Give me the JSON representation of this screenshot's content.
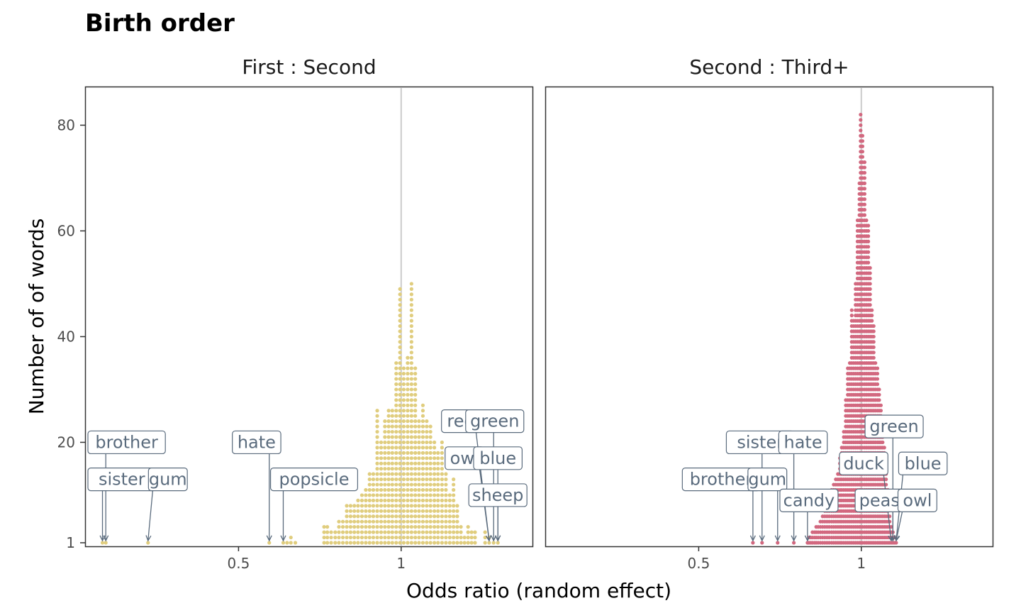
{
  "chart_data": {
    "type": "dotplot",
    "title": "Birth order",
    "xlabel": "Odds ratio (random effect)",
    "ylabel": "Number of of words",
    "x_scale": "log",
    "x_ticks": [
      0.5,
      1
    ],
    "y_ticks": [
      1,
      20,
      40,
      60,
      80
    ],
    "ylim": [
      1,
      86
    ],
    "reference_line": 1,
    "panels": [
      {
        "name": "First : Second",
        "color": "#e0cd7e",
        "xlim": [
          0.26,
          1.75
        ],
        "bins": [
          {
            "x": 0.28,
            "count": 1
          },
          {
            "x": 0.284,
            "count": 1
          },
          {
            "x": 0.34,
            "count": 1
          },
          {
            "x": 0.57,
            "count": 1
          },
          {
            "x": 0.605,
            "count": 1
          },
          {
            "x": 0.615,
            "count": 1
          },
          {
            "x": 0.625,
            "count": 2
          },
          {
            "x": 0.637,
            "count": 1
          },
          {
            "x": 0.72,
            "count": 4
          },
          {
            "x": 0.73,
            "count": 4
          },
          {
            "x": 0.742,
            "count": 3
          },
          {
            "x": 0.755,
            "count": 3
          },
          {
            "x": 0.767,
            "count": 5
          },
          {
            "x": 0.78,
            "count": 5
          },
          {
            "x": 0.793,
            "count": 8
          },
          {
            "x": 0.806,
            "count": 8
          },
          {
            "x": 0.819,
            "count": 8
          },
          {
            "x": 0.832,
            "count": 9
          },
          {
            "x": 0.846,
            "count": 10
          },
          {
            "x": 0.86,
            "count": 11
          },
          {
            "x": 0.874,
            "count": 14
          },
          {
            "x": 0.888,
            "count": 14
          },
          {
            "x": 0.903,
            "count": 26
          },
          {
            "x": 0.918,
            "count": 20
          },
          {
            "x": 0.933,
            "count": 24
          },
          {
            "x": 0.948,
            "count": 26
          },
          {
            "x": 0.963,
            "count": 26
          },
          {
            "x": 0.979,
            "count": 35
          },
          {
            "x": 0.995,
            "count": 49
          },
          {
            "x": 1.011,
            "count": 34
          },
          {
            "x": 1.028,
            "count": 36
          },
          {
            "x": 1.045,
            "count": 50
          },
          {
            "x": 1.062,
            "count": 34
          },
          {
            "x": 1.079,
            "count": 24
          },
          {
            "x": 1.097,
            "count": 27
          },
          {
            "x": 1.115,
            "count": 24
          },
          {
            "x": 1.133,
            "count": 23
          },
          {
            "x": 1.152,
            "count": 20
          },
          {
            "x": 1.17,
            "count": 18
          },
          {
            "x": 1.19,
            "count": 20
          },
          {
            "x": 1.21,
            "count": 14
          },
          {
            "x": 1.23,
            "count": 10
          },
          {
            "x": 1.25,
            "count": 13
          },
          {
            "x": 1.27,
            "count": 8
          },
          {
            "x": 1.29,
            "count": 4
          },
          {
            "x": 1.31,
            "count": 2
          },
          {
            "x": 1.33,
            "count": 4
          },
          {
            "x": 1.35,
            "count": 3
          },
          {
            "x": 1.37,
            "count": 3
          },
          {
            "x": 1.43,
            "count": 3
          },
          {
            "x": 1.455,
            "count": 2
          },
          {
            "x": 1.483,
            "count": 1
          },
          {
            "x": 1.51,
            "count": 1
          }
        ],
        "labels": [
          {
            "text": "brother",
            "target_x": 0.284,
            "label_x": 0.29,
            "label_y": 20
          },
          {
            "text": "sister",
            "target_x": 0.28,
            "label_x": 0.278,
            "label_y": 13
          },
          {
            "text": "gum",
            "target_x": 0.34,
            "label_x": 0.37,
            "label_y": 13
          },
          {
            "text": "hate",
            "target_x": 0.57,
            "label_x": 0.54,
            "label_y": 20
          },
          {
            "text": "popsicle",
            "target_x": 0.605,
            "label_x": 0.69,
            "label_y": 13
          },
          {
            "text": "red",
            "target_x": 1.455,
            "label_x": 1.29,
            "label_y": 24
          },
          {
            "text": "green",
            "target_x": 1.483,
            "label_x": 1.49,
            "label_y": 24
          },
          {
            "text": "owl",
            "target_x": 1.455,
            "label_x": 1.31,
            "label_y": 17
          },
          {
            "text": "blue",
            "target_x": 1.51,
            "label_x": 1.51,
            "label_y": 17
          },
          {
            "text": "sheep",
            "target_x": 1.51,
            "label_x": 1.51,
            "label_y": 10
          }
        ]
      },
      {
        "name": "Second : Third+",
        "color": "#d2687f",
        "xlim": [
          0.26,
          1.75
        ],
        "bins": [
          {
            "x": 0.63,
            "count": 1
          },
          {
            "x": 0.655,
            "count": 1
          },
          {
            "x": 0.7,
            "count": 1
          },
          {
            "x": 0.75,
            "count": 1
          },
          {
            "x": 0.795,
            "count": 1
          },
          {
            "x": 0.8,
            "count": 2
          },
          {
            "x": 0.806,
            "count": 2
          },
          {
            "x": 0.812,
            "count": 3
          },
          {
            "x": 0.819,
            "count": 3
          },
          {
            "x": 0.825,
            "count": 4
          },
          {
            "x": 0.832,
            "count": 4
          },
          {
            "x": 0.84,
            "count": 5
          },
          {
            "x": 0.848,
            "count": 6
          },
          {
            "x": 0.856,
            "count": 7
          },
          {
            "x": 0.864,
            "count": 8
          },
          {
            "x": 0.872,
            "count": 9
          },
          {
            "x": 0.881,
            "count": 11
          },
          {
            "x": 0.889,
            "count": 12
          },
          {
            "x": 0.897,
            "count": 13
          },
          {
            "x": 0.905,
            "count": 14
          },
          {
            "x": 0.913,
            "count": 17
          },
          {
            "x": 0.92,
            "count": 19
          },
          {
            "x": 0.928,
            "count": 22
          },
          {
            "x": 0.936,
            "count": 28
          },
          {
            "x": 0.944,
            "count": 34
          },
          {
            "x": 0.952,
            "count": 35
          },
          {
            "x": 0.96,
            "count": 45
          },
          {
            "x": 0.968,
            "count": 43
          },
          {
            "x": 0.976,
            "count": 50
          },
          {
            "x": 0.984,
            "count": 62
          },
          {
            "x": 0.992,
            "count": 69
          },
          {
            "x": 0.997,
            "count": 82
          },
          {
            "x": 1.005,
            "count": 78
          },
          {
            "x": 1.014,
            "count": 73
          },
          {
            "x": 1.022,
            "count": 62
          },
          {
            "x": 1.03,
            "count": 61
          },
          {
            "x": 1.038,
            "count": 53
          },
          {
            "x": 1.046,
            "count": 45
          },
          {
            "x": 1.054,
            "count": 42
          },
          {
            "x": 1.062,
            "count": 35
          },
          {
            "x": 1.071,
            "count": 34
          },
          {
            "x": 1.079,
            "count": 30
          },
          {
            "x": 1.087,
            "count": 27
          },
          {
            "x": 1.095,
            "count": 24
          },
          {
            "x": 1.103,
            "count": 19
          },
          {
            "x": 1.111,
            "count": 15
          },
          {
            "x": 1.12,
            "count": 11
          },
          {
            "x": 1.128,
            "count": 6
          },
          {
            "x": 1.136,
            "count": 4
          },
          {
            "x": 1.144,
            "count": 3
          },
          {
            "x": 1.152,
            "count": 2
          },
          {
            "x": 1.16,
            "count": 1
          }
        ],
        "labels": [
          {
            "text": "brother",
            "target_x": 0.63,
            "label_x": 0.55,
            "label_y": 13
          },
          {
            "text": "sister",
            "target_x": 0.655,
            "label_x": 0.65,
            "label_y": 20
          },
          {
            "text": "gum",
            "target_x": 0.7,
            "label_x": 0.67,
            "label_y": 13
          },
          {
            "text": "hate",
            "target_x": 0.75,
            "label_x": 0.78,
            "label_y": 20
          },
          {
            "text": "candy",
            "target_x": 0.795,
            "label_x": 0.8,
            "label_y": 9
          },
          {
            "text": "duck",
            "target_x": 1.136,
            "label_x": 1.01,
            "label_y": 16
          },
          {
            "text": "green",
            "target_x": 1.144,
            "label_x": 1.15,
            "label_y": 23
          },
          {
            "text": "peas",
            "target_x": 1.144,
            "label_x": 1.08,
            "label_y": 9
          },
          {
            "text": "blue",
            "target_x": 1.16,
            "label_x": 1.3,
            "label_y": 16
          },
          {
            "text": "owl",
            "target_x": 1.16,
            "label_x": 1.27,
            "label_y": 9
          }
        ]
      }
    ]
  }
}
